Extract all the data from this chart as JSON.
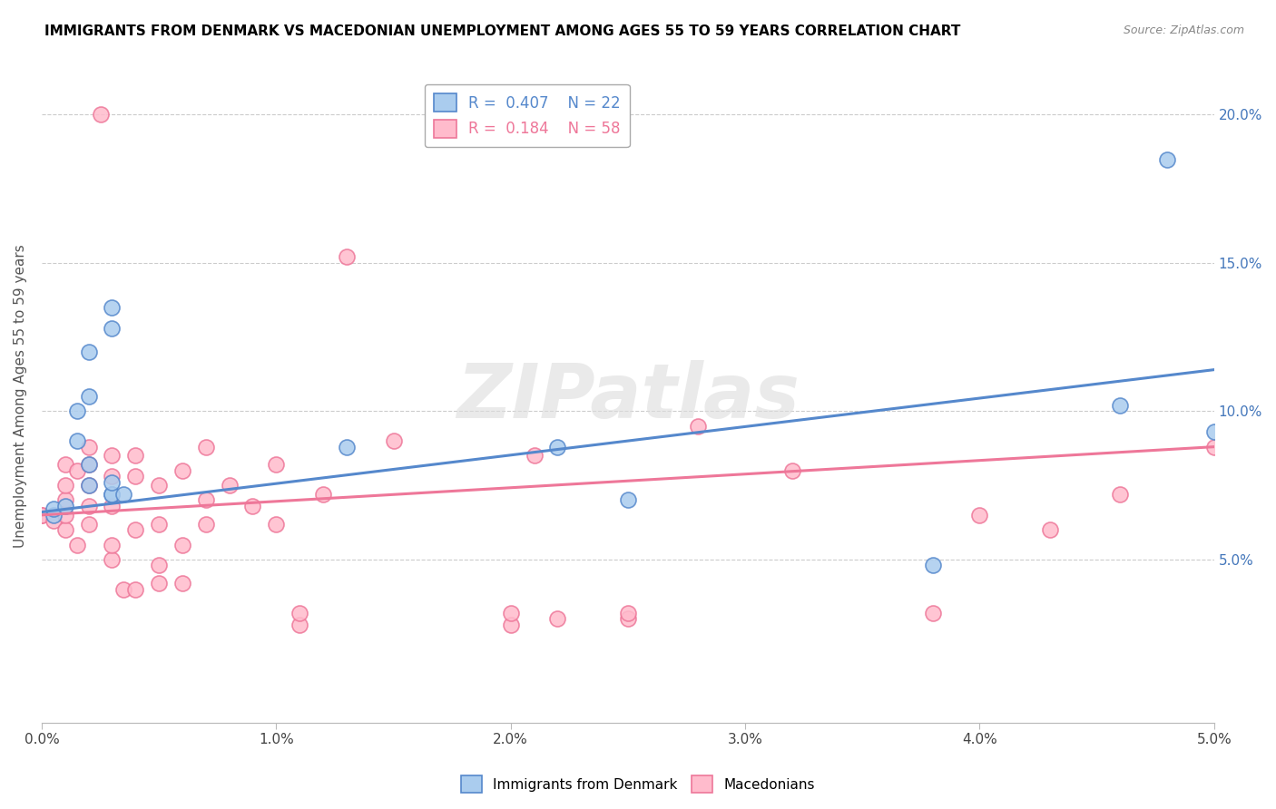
{
  "title": "IMMIGRANTS FROM DENMARK VS MACEDONIAN UNEMPLOYMENT AMONG AGES 55 TO 59 YEARS CORRELATION CHART",
  "source": "Source: ZipAtlas.com",
  "ylabel": "Unemployment Among Ages 55 to 59 years",
  "xlim": [
    0.0,
    0.05
  ],
  "ylim": [
    -0.005,
    0.215
  ],
  "xtick_labels": [
    "0.0%",
    "1.0%",
    "2.0%",
    "3.0%",
    "4.0%",
    "5.0%"
  ],
  "xtick_vals": [
    0.0,
    0.01,
    0.02,
    0.03,
    0.04,
    0.05
  ],
  "ytick_labels": [
    "5.0%",
    "10.0%",
    "15.0%",
    "20.0%"
  ],
  "ytick_vals": [
    0.05,
    0.1,
    0.15,
    0.2
  ],
  "blue_color": "#5588CC",
  "pink_color": "#EE7799",
  "blue_fill": "#AACCEE",
  "pink_fill": "#FFBBCC",
  "legend_R_blue": "0.407",
  "legend_N_blue": "22",
  "legend_R_pink": "0.184",
  "legend_N_pink": "58",
  "blue_points_x": [
    0.0005,
    0.0005,
    0.001,
    0.0015,
    0.0015,
    0.002,
    0.002,
    0.002,
    0.002,
    0.003,
    0.003,
    0.003,
    0.003,
    0.003,
    0.0035,
    0.013,
    0.022,
    0.025,
    0.038,
    0.046,
    0.048,
    0.05
  ],
  "blue_points_y": [
    0.065,
    0.067,
    0.068,
    0.09,
    0.1,
    0.075,
    0.082,
    0.105,
    0.12,
    0.072,
    0.072,
    0.076,
    0.128,
    0.135,
    0.072,
    0.088,
    0.088,
    0.07,
    0.048,
    0.102,
    0.185,
    0.093
  ],
  "pink_points_x": [
    0.0,
    0.0,
    0.0005,
    0.001,
    0.001,
    0.001,
    0.001,
    0.001,
    0.0015,
    0.0015,
    0.002,
    0.002,
    0.002,
    0.002,
    0.002,
    0.0025,
    0.003,
    0.003,
    0.003,
    0.003,
    0.003,
    0.0035,
    0.004,
    0.004,
    0.004,
    0.004,
    0.005,
    0.005,
    0.005,
    0.005,
    0.006,
    0.006,
    0.006,
    0.007,
    0.007,
    0.007,
    0.008,
    0.009,
    0.01,
    0.01,
    0.011,
    0.011,
    0.012,
    0.013,
    0.015,
    0.02,
    0.02,
    0.021,
    0.022,
    0.025,
    0.025,
    0.028,
    0.032,
    0.038,
    0.04,
    0.043,
    0.046,
    0.05
  ],
  "pink_points_y": [
    0.065,
    0.065,
    0.063,
    0.06,
    0.065,
    0.07,
    0.075,
    0.082,
    0.055,
    0.08,
    0.062,
    0.068,
    0.075,
    0.082,
    0.088,
    0.2,
    0.05,
    0.055,
    0.068,
    0.078,
    0.085,
    0.04,
    0.04,
    0.06,
    0.078,
    0.085,
    0.042,
    0.048,
    0.062,
    0.075,
    0.042,
    0.055,
    0.08,
    0.062,
    0.07,
    0.088,
    0.075,
    0.068,
    0.062,
    0.082,
    0.028,
    0.032,
    0.072,
    0.152,
    0.09,
    0.028,
    0.032,
    0.085,
    0.03,
    0.03,
    0.032,
    0.095,
    0.08,
    0.032,
    0.065,
    0.06,
    0.072,
    0.088
  ],
  "watermark_text": "ZIPatlas",
  "blue_trendline_x": [
    0.0,
    0.05
  ],
  "blue_trendline_y": [
    0.066,
    0.114
  ],
  "pink_trendline_x": [
    0.0,
    0.05
  ],
  "pink_trendline_y": [
    0.065,
    0.088
  ]
}
